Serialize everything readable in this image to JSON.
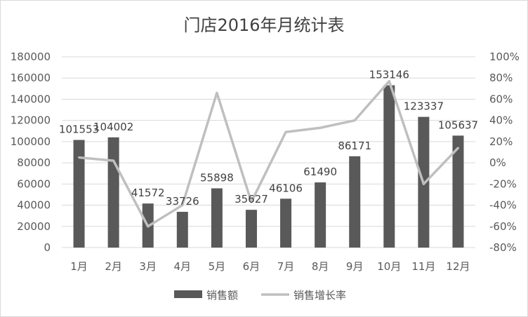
{
  "chart_data": {
    "type": "bar",
    "title": "门店2016年月统计表",
    "categories": [
      "1月",
      "2月",
      "3月",
      "4月",
      "5月",
      "6月",
      "7月",
      "8月",
      "9月",
      "10月",
      "11月",
      "12月"
    ],
    "series": [
      {
        "name": "销售额",
        "type": "bar",
        "axis": "left",
        "values": [
          101553,
          104002,
          41572,
          33726,
          55898,
          35627,
          46106,
          61490,
          86171,
          153146,
          123337,
          105637
        ],
        "color": "#595959"
      },
      {
        "name": "销售增长率",
        "type": "line",
        "axis": "right",
        "values": [
          5,
          2,
          -60,
          -40,
          66,
          -37,
          29,
          33,
          40,
          77,
          -20,
          14
        ],
        "color": "#bfbfbf"
      }
    ],
    "y_left": {
      "min": 0,
      "max": 180000,
      "step": 20000,
      "ticks": [
        "0",
        "20000",
        "40000",
        "60000",
        "80000",
        "100000",
        "120000",
        "140000",
        "160000",
        "180000"
      ]
    },
    "y_right": {
      "min": -80,
      "max": 100,
      "step": 20,
      "ticks": [
        "-80%",
        "-60%",
        "-40%",
        "-20%",
        "0%",
        "20%",
        "40%",
        "60%",
        "80%",
        "100%"
      ]
    },
    "data_labels": [
      "101553",
      "104002",
      "41572",
      "33726",
      "55898",
      "35627",
      "46106",
      "61490",
      "86171",
      "153146",
      "123337",
      "105637"
    ],
    "grid": true,
    "legend_position": "bottom"
  }
}
